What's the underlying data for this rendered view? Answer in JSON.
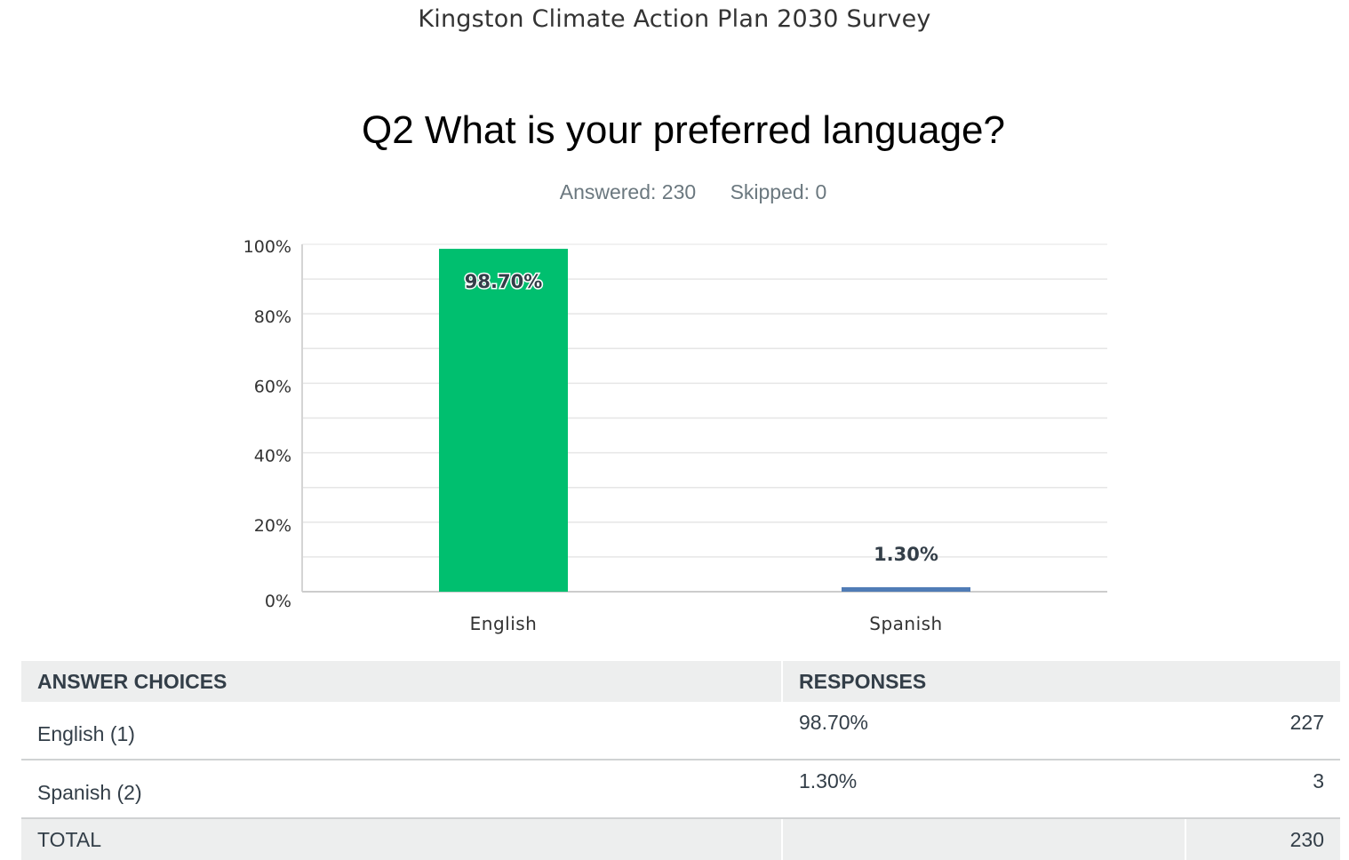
{
  "survey_title": "Kingston Climate Action Plan 2030 Survey",
  "question_title": "Q2 What is your preferred language?",
  "stats": {
    "answered": "Answered: 230",
    "skipped": "Skipped: 0"
  },
  "chart_data": {
    "type": "bar",
    "categories": [
      "English",
      "Spanish"
    ],
    "values": [
      98.7,
      1.3
    ],
    "value_labels": [
      "98.70%",
      "1.30%"
    ],
    "colors": [
      "#00bf6f",
      "#507cb6"
    ],
    "ylim": [
      0,
      100
    ],
    "yticks": [
      "0%",
      "20%",
      "40%",
      "60%",
      "80%",
      "100%"
    ],
    "grid": true,
    "title": "",
    "xlabel": "",
    "ylabel": ""
  },
  "table": {
    "headers": [
      "ANSWER CHOICES",
      "RESPONSES"
    ],
    "rows": [
      {
        "choice": "English (1)",
        "percent": "98.70%",
        "count": "227"
      },
      {
        "choice": "Spanish (2)",
        "percent": "1.30%",
        "count": "3"
      }
    ],
    "total_label": "TOTAL",
    "total_count": "230"
  }
}
